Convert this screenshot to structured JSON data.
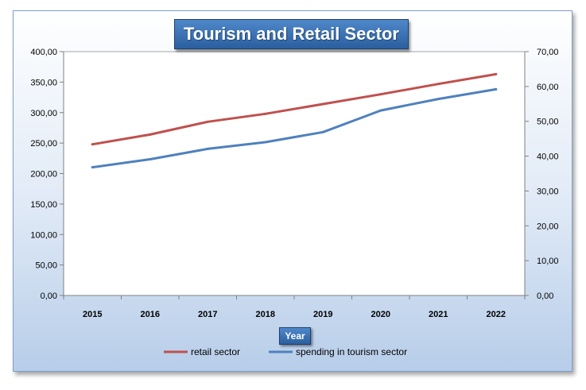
{
  "chart_data": {
    "type": "line",
    "title": "Tourism and Retail Sector",
    "xlabel": "Year",
    "ylabel": "",
    "categories": [
      "2015",
      "2016",
      "2017",
      "2018",
      "2019",
      "2020",
      "2021",
      "2022"
    ],
    "series": [
      {
        "name": "retail sector",
        "axis": "left",
        "color": "#c0504d",
        "values": [
          248,
          264,
          285,
          298,
          314,
          330,
          347,
          363
        ]
      },
      {
        "name": "spending in tourism sector",
        "axis": "right",
        "color": "#4f81bd",
        "values": [
          36.8,
          39.1,
          42.1,
          44.0,
          46.9,
          53.1,
          56.4,
          59.2
        ]
      }
    ],
    "ylim_left": [
      0,
      400
    ],
    "ylim_right": [
      0,
      70
    ],
    "left_ticks": [
      "0,00",
      "50,00",
      "100,00",
      "150,00",
      "200,00",
      "250,00",
      "300,00",
      "350,00",
      "400,00"
    ],
    "right_ticks": [
      "0,00",
      "10,00",
      "20,00",
      "30,00",
      "40,00",
      "50,00",
      "60,00",
      "70,00"
    ],
    "legend_position": "bottom",
    "grid": false
  }
}
